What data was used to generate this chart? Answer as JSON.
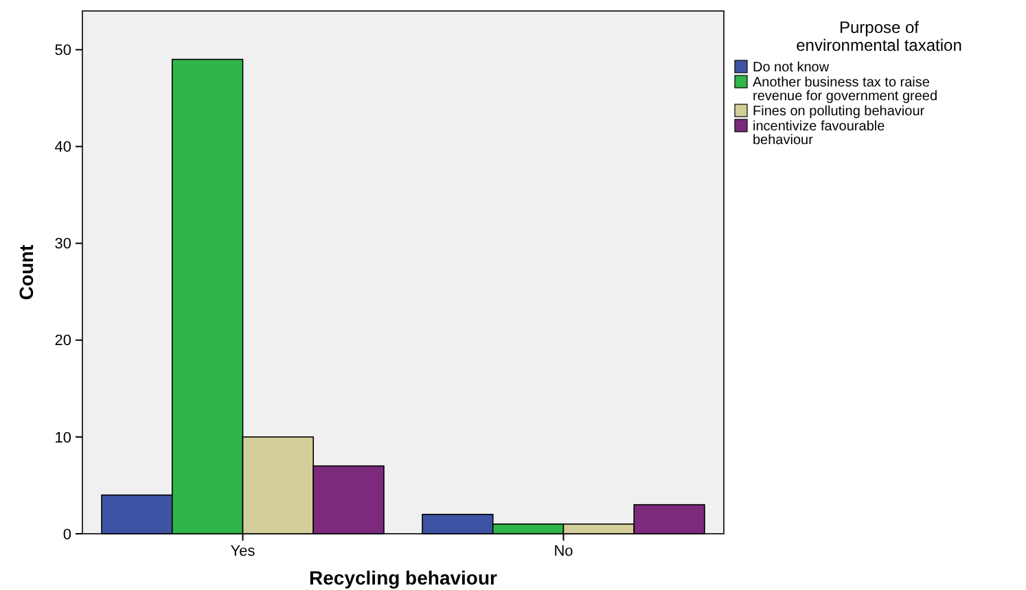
{
  "chart_data": {
    "type": "bar",
    "xlabel": "Recycling behaviour",
    "ylabel": "Count",
    "legend_title": "Purpose of environmental taxation",
    "categories": [
      "Yes",
      "No"
    ],
    "series": [
      {
        "name": "Do not know",
        "color": "#3e53a4",
        "values": [
          4,
          2
        ]
      },
      {
        "name": "Another business tax to raise revenue for government greed",
        "color": "#2fb54a",
        "values": [
          49,
          1
        ]
      },
      {
        "name": "Fines on polluting behaviour",
        "color": "#d4ce9a",
        "values": [
          10,
          1
        ]
      },
      {
        "name": "incentivize favourable behaviour",
        "color": "#7b2a7c",
        "values": [
          7,
          3
        ]
      }
    ],
    "ylim": [
      0,
      54
    ],
    "yticks": [
      0,
      10,
      20,
      30,
      40,
      50
    ],
    "grid": false,
    "legend": "right"
  }
}
